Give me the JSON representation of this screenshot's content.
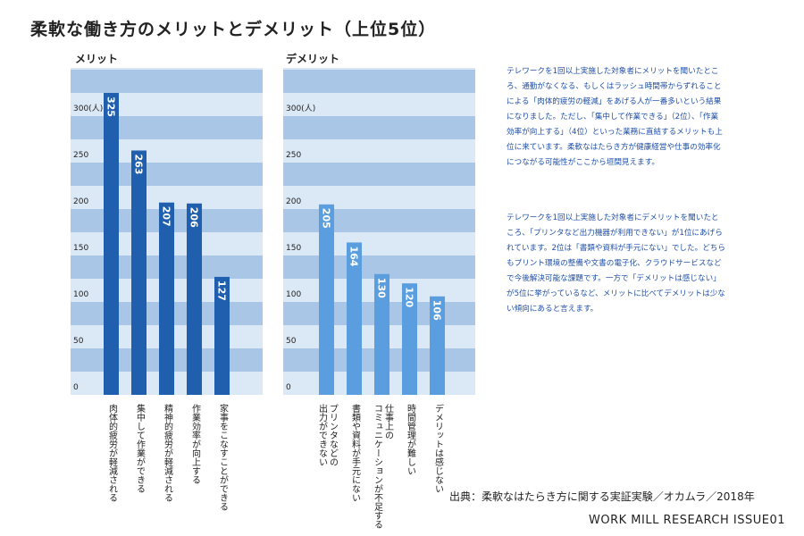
{
  "title": "柔軟な働き方のメリットとデメリット（上位5位）",
  "chart_data": [
    {
      "type": "bar",
      "title": "メリット",
      "categories": [
        "肉体的疲労が軽減される",
        "集中して作業ができる",
        "精神的疲労が軽減される",
        "作業効率が向上する",
        "家事をこなすことができる"
      ],
      "values": [
        325,
        263,
        207,
        206,
        127
      ],
      "ylim": [
        0,
        350
      ],
      "yticks": [
        "0",
        "50",
        "100",
        "150",
        "200",
        "250",
        "300(人)"
      ],
      "bar_color": "#1f5fad"
    },
    {
      "type": "bar",
      "title": "デメリット",
      "categories": [
        "プリンタなどの\n出力ができない",
        "書類や資料が手元にない",
        "仕事上の\nコミュニケーションが不足する",
        "時間管理が難しい",
        "デメリットは感じない"
      ],
      "values": [
        205,
        164,
        130,
        120,
        106
      ],
      "ylim": [
        0,
        350
      ],
      "yticks": [
        "0",
        "50",
        "100",
        "150",
        "200",
        "250",
        "300(人)"
      ],
      "bar_color": "#5a9ee0"
    }
  ],
  "paragraph1": "テレワークを1回以上実施した対象者にメリットを聞いたところ、通勤がなくなる、もしくはラッシュ時間帯からずれることによる「肉体的疲労の軽減」をあげる人が一番多いという結果になりました。ただし、「集中して作業できる」（2位）、「作業効率が向上する」（4位）といった業務に直結するメリットも上位に来ています。柔軟なはたらき方が健康経営や仕事の効率化につながる可能性がここから垣間見えます。",
  "paragraph2": "テレワークを1回以上実施した対象者にデメリットを聞いたところ、「プリンタなど出力機器が利用できない」が1位にあげられています。2位は「書類や資料が手元にない」でした。どちらもプリント環境の整備や文書の電子化、クラウドサービスなどで今後解決可能な課題です。一方で「デメリットは感じない」が5位に挙がっているなど、メリットに比べてデメリットは少ない傾向にあると言えます。",
  "source": "出典：柔軟なはたらき方に関する実証実験／オカムラ／2018年",
  "footer": "WORK MILL RESEARCH ISSUE01",
  "colors": {
    "band_dark": "#a9c6e6",
    "band_light": "#dbe8f6",
    "text_blue": "#1f4fa8"
  }
}
